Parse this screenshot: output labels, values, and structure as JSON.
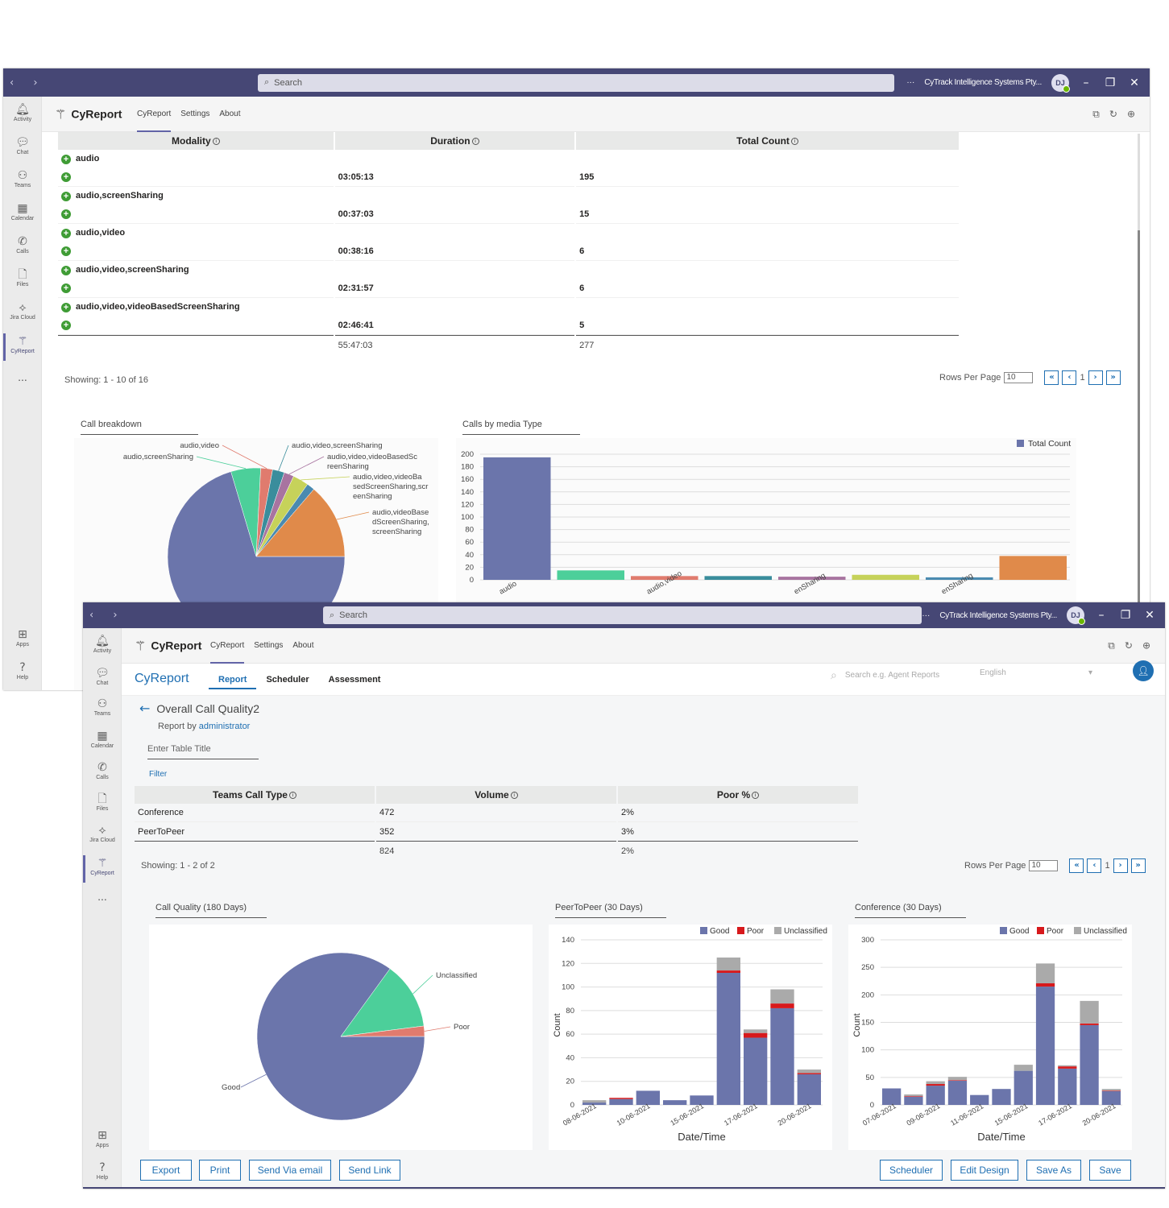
{
  "window_a": {
    "titlebar": {
      "search_placeholder": "Search",
      "org": "CyTrack Intelligence Systems Pty...",
      "avatar": "DJ"
    },
    "rail": [
      {
        "label": "Activity",
        "icon": "bell-icon"
      },
      {
        "label": "Chat",
        "icon": "chat-icon"
      },
      {
        "label": "Teams",
        "icon": "teams-icon"
      },
      {
        "label": "Calendar",
        "icon": "calendar-icon"
      },
      {
        "label": "Calls",
        "icon": "phone-icon"
      },
      {
        "label": "Files",
        "icon": "file-icon"
      },
      {
        "label": "Jira Cloud",
        "icon": "jira-icon"
      },
      {
        "label": "CyReport",
        "icon": "cyreport-icon"
      },
      {
        "label": "...",
        "icon": "more-icon"
      },
      {
        "label": "Apps",
        "icon": "apps-icon"
      },
      {
        "label": "Help",
        "icon": "help-icon"
      }
    ],
    "app": {
      "name": "CyReport",
      "tabs": [
        "CyReport",
        "Settings",
        "About"
      ]
    },
    "table": {
      "headers": [
        "Modality",
        "Duration",
        "Total Count"
      ],
      "rows": [
        {
          "modality": "audio",
          "duration": "",
          "count": ""
        },
        {
          "modality": "",
          "duration": "03:05:13",
          "count": "195"
        },
        {
          "modality": "audio,screenSharing",
          "duration": "",
          "count": ""
        },
        {
          "modality": "",
          "duration": "00:37:03",
          "count": "15"
        },
        {
          "modality": "audio,video",
          "duration": "",
          "count": ""
        },
        {
          "modality": "",
          "duration": "00:38:16",
          "count": "6"
        },
        {
          "modality": "audio,video,screenSharing",
          "duration": "",
          "count": ""
        },
        {
          "modality": "",
          "duration": "02:31:57",
          "count": "6"
        },
        {
          "modality": "audio,video,videoBasedScreenSharing",
          "duration": "",
          "count": ""
        },
        {
          "modality": "",
          "duration": "02:46:41",
          "count": "5"
        }
      ],
      "footer": {
        "duration": "55:47:03",
        "count": "277"
      }
    },
    "showing": "Showing: 1 - 10 of 16",
    "pager": {
      "label": "Rows Per Page",
      "value": "10",
      "page": "1"
    },
    "pie_title": "Call breakdown",
    "bar_title": "Calls by media Type"
  },
  "window_b": {
    "titlebar": {
      "search_placeholder": "Search",
      "org": "CyTrack Intelligence Systems Pty...",
      "avatar": "DJ"
    },
    "rail": [
      {
        "label": "Activity",
        "icon": "bell-icon"
      },
      {
        "label": "Chat",
        "icon": "chat-icon"
      },
      {
        "label": "Teams",
        "icon": "teams-icon"
      },
      {
        "label": "Calendar",
        "icon": "calendar-icon"
      },
      {
        "label": "Calls",
        "icon": "phone-icon"
      },
      {
        "label": "Files",
        "icon": "file-icon"
      },
      {
        "label": "Jira Cloud",
        "icon": "jira-icon"
      },
      {
        "label": "CyReport",
        "icon": "cyreport-icon"
      },
      {
        "label": "...",
        "icon": "more-icon"
      },
      {
        "label": "Apps",
        "icon": "apps-icon"
      },
      {
        "label": "Help",
        "icon": "help-icon"
      }
    ],
    "app": {
      "name": "CyReport",
      "tabs": [
        "CyReport",
        "Settings",
        "About"
      ]
    },
    "cy": {
      "logo": "CyReport",
      "tabs": [
        "Report",
        "Scheduler",
        "Assessment"
      ],
      "search_placeholder": "Search e.g. Agent Reports",
      "language": "English"
    },
    "report": {
      "title": "Overall Call Quality2",
      "by_label": "Report by",
      "by_user": "administrator",
      "table_title_placeholder": "Enter Table Title",
      "filter": "Filter"
    },
    "table": {
      "headers": [
        "Teams Call Type",
        "Volume",
        "Poor %"
      ],
      "rows": [
        {
          "type": "Conference",
          "volume": "472",
          "poor": "2%"
        },
        {
          "type": "PeerToPeer",
          "volume": "352",
          "poor": "3%"
        }
      ],
      "footer": {
        "volume": "824",
        "poor": "2%"
      }
    },
    "showing": "Showing: 1 - 2 of 2",
    "pager": {
      "label": "Rows Per Page",
      "value": "10",
      "page": "1"
    },
    "buttons_left": [
      "Export",
      "Print",
      "Send Via email",
      "Send Link"
    ],
    "buttons_right": [
      "Scheduler",
      "Edit Design",
      "Save As",
      "Save"
    ]
  },
  "colors": {
    "good": "#6b75ab",
    "poor": "#d7191c",
    "unclassified": "#aaaaaa",
    "teal": "#4ccf9a",
    "salmon": "#e07b6e",
    "accent": "#1f6fb2",
    "teams": "#464775"
  },
  "chart_data": [
    {
      "type": "pie",
      "title": "Call breakdown",
      "labels": [
        "audio",
        "audio,screenSharing",
        "audio,video",
        "audio,video,screenSharing",
        "audio,video,videoBasedScreenSharing",
        "audio,video,videoBasedScreenSharing,screenSharing",
        "audio,videoBasedScreenSharing,screenSharing",
        ""
      ],
      "visible_labels": [
        "audio,video",
        "audio,screenSharing",
        "audio,video,screenSharing",
        "audio,video,videoBasedSc reenSharing",
        "audio,video,videoBa sedScreenSharing,scr eenSharing",
        "audio,videoBase dScreenSharing, screenSharing"
      ],
      "values": [
        195,
        15,
        6,
        6,
        5,
        8,
        4,
        38
      ],
      "colors": [
        "#6b75ab",
        "#4ccf9a",
        "#e07b6e",
        "#3a8d9c",
        "#a874a0",
        "#c6d25a",
        "#4a8ab0",
        "#e08a4a"
      ]
    },
    {
      "type": "bar",
      "title": "Calls by media Type",
      "legend": [
        "Total Count"
      ],
      "x_tick_labels": [
        "audio",
        "audio,video",
        "enSharing",
        "enSharing"
      ],
      "values": [
        195,
        15,
        6,
        6,
        5,
        8,
        4,
        38
      ],
      "ylim": [
        0,
        200
      ],
      "yticks": [
        0,
        20,
        40,
        60,
        80,
        100,
        120,
        140,
        160,
        180,
        200
      ],
      "colors": [
        "#6b75ab",
        "#4ccf9a",
        "#e07b6e",
        "#3a8d9c",
        "#a874a0",
        "#c6d25a",
        "#4a8ab0",
        "#e08a4a"
      ]
    },
    {
      "type": "pie",
      "title": "Call Quality (180 Days)",
      "labels": [
        "Good",
        "Unclassified",
        "Poor"
      ],
      "values": [
        85,
        13,
        2
      ],
      "colors": [
        "#6b75ab",
        "#4ccf9a",
        "#e07b6e"
      ]
    },
    {
      "type": "bar",
      "title": "PeerToPeer (30 Days)",
      "legend": [
        "Good",
        "Poor",
        "Unclassified"
      ],
      "xlabel": "Date/Time",
      "ylabel": "Count",
      "ylim": [
        0,
        140
      ],
      "yticks": [
        0,
        20,
        40,
        60,
        80,
        100,
        120,
        140
      ],
      "x_tick_labels": [
        "08-06-2021",
        "10-06-2021",
        "15-06-2021",
        "17-06-2021",
        "20-06-2021"
      ],
      "series": [
        {
          "name": "Good",
          "values": [
            2,
            5,
            12,
            4,
            8,
            112,
            57,
            82,
            26
          ]
        },
        {
          "name": "Poor",
          "values": [
            0,
            1,
            0,
            0,
            0,
            2,
            4,
            4,
            1
          ]
        },
        {
          "name": "Unclassified",
          "values": [
            2,
            0,
            0,
            0,
            0,
            11,
            3,
            12,
            3
          ]
        }
      ]
    },
    {
      "type": "bar",
      "title": "Conference (30 Days)",
      "legend": [
        "Good",
        "Poor",
        "Unclassified"
      ],
      "xlabel": "Date/Time",
      "ylabel": "Count",
      "ylim": [
        0,
        300
      ],
      "yticks": [
        0,
        50,
        100,
        150,
        200,
        250,
        300
      ],
      "x_tick_labels": [
        "07-06-2021",
        "09-06-2021",
        "11-06-2021",
        "15-06-2021",
        "17-06-2021",
        "20-06-2021"
      ],
      "series": [
        {
          "name": "Good",
          "values": [
            30,
            15,
            35,
            44,
            18,
            29,
            62,
            215,
            66,
            145,
            25
          ]
        },
        {
          "name": "Poor",
          "values": [
            0,
            1,
            3,
            1,
            0,
            0,
            0,
            6,
            4,
            3,
            1
          ]
        },
        {
          "name": "Unclassified",
          "values": [
            0,
            3,
            5,
            6,
            0,
            0,
            11,
            36,
            2,
            41,
            3
          ]
        }
      ]
    }
  ]
}
